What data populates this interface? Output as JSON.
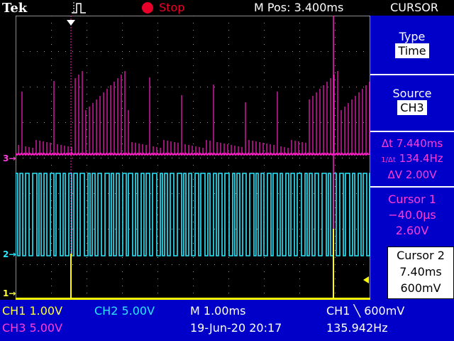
{
  "header": {
    "brand": "Tek",
    "run_state": "Stop",
    "horizontal_position": "M Pos: 3.400ms",
    "menu_title": "CURSOR"
  },
  "menu": {
    "type_label": "Type",
    "type_value": "Time",
    "source_label": "Source",
    "source_value": "CH3",
    "delta_t": "Δt 7.440ms",
    "inv_delta_t": "134.4Hz",
    "delta_v": "ΔV 2.00V",
    "cursor1_label": "Cursor 1",
    "cursor1_time": "−40.0µs",
    "cursor1_volt": "2.60V",
    "cursor2_label": "Cursor 2",
    "cursor2_time": "7.40ms",
    "cursor2_volt": "600mV"
  },
  "channel_markers": {
    "ch3": "3",
    "ch2": "2",
    "ch1": "1"
  },
  "status": {
    "ch1_scale": "CH1  1.00V",
    "ch2_scale": "CH2  5.00V",
    "ch3_scale": "CH3  5.00V",
    "timebase": "M 1.00ms",
    "trigger": "CH1 ╲ 600mV",
    "date": "19-Jun-20 20:17",
    "frequency": "135.942Hz"
  },
  "colors": {
    "ch1": "#ffff00",
    "ch2": "#28e8ff",
    "ch3": "#ff1ec8",
    "menu_bg": "#0000c8",
    "stop": "#e8002a"
  }
}
